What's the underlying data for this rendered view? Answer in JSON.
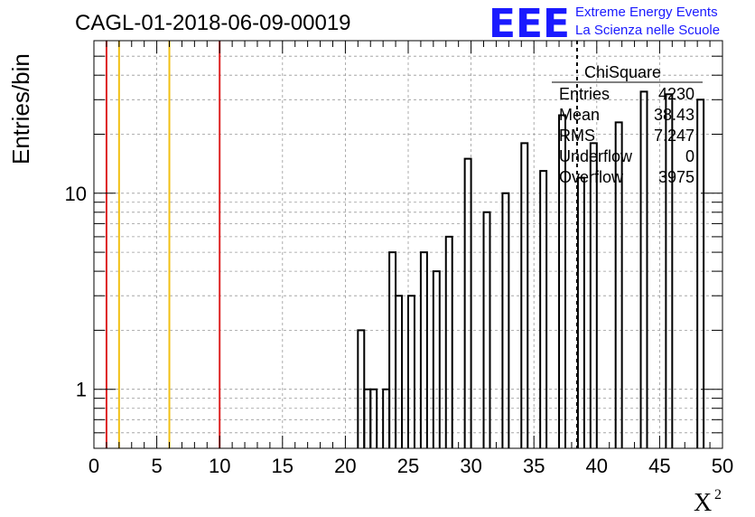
{
  "header": {
    "logo_text": "EEE",
    "org_line1": "Extreme Energy Events",
    "org_line2": "La Scienza nelle Scuole",
    "brand_color": "#1a1aff"
  },
  "stats_box": {
    "title": "ChiSquare",
    "rows": [
      {
        "label": "Entries",
        "value": "4230"
      },
      {
        "label": "Mean",
        "value": "38.43"
      },
      {
        "label": "RMS",
        "value": "7.247"
      },
      {
        "label": "Underflow",
        "value": "0"
      },
      {
        "label": "Overflow",
        "value": "3975"
      }
    ]
  },
  "chart_data": {
    "type": "bar",
    "title": "CAGL-01-2018-06-09-00019",
    "xlabel": "X",
    "xlabel_superscript": "2",
    "ylabel": "Entries/bin",
    "xlim": [
      0,
      50
    ],
    "ylim": [
      0.5,
      60
    ],
    "yscale": "log",
    "grid": true,
    "x_ticks": [
      "0",
      "5",
      "10",
      "15",
      "20",
      "25",
      "30",
      "35",
      "40",
      "45",
      "50"
    ],
    "y_ticks": [
      "1",
      "10"
    ],
    "histogram": {
      "bin_width": 0.5,
      "bins": [
        {
          "x": 21.0,
          "count": 2
        },
        {
          "x": 21.5,
          "count": 1
        },
        {
          "x": 22.0,
          "count": 1
        },
        {
          "x": 23.0,
          "count": 1
        },
        {
          "x": 23.5,
          "count": 5
        },
        {
          "x": 24.0,
          "count": 3
        },
        {
          "x": 25.0,
          "count": 3
        },
        {
          "x": 26.0,
          "count": 5
        },
        {
          "x": 27.0,
          "count": 4
        },
        {
          "x": 28.0,
          "count": 6
        },
        {
          "x": 29.5,
          "count": 15
        },
        {
          "x": 31.0,
          "count": 8
        },
        {
          "x": 32.5,
          "count": 10
        },
        {
          "x": 34.0,
          "count": 18
        },
        {
          "x": 35.5,
          "count": 13
        },
        {
          "x": 37.0,
          "count": 25
        },
        {
          "x": 38.5,
          "count": 12
        },
        {
          "x": 39.5,
          "count": 18
        },
        {
          "x": 41.5,
          "count": 23
        },
        {
          "x": 43.5,
          "count": 33
        },
        {
          "x": 45.5,
          "count": 32
        },
        {
          "x": 48.0,
          "count": 30
        }
      ]
    },
    "vertical_lines": [
      {
        "x": 1,
        "color": "#dd2222"
      },
      {
        "x": 2,
        "color": "#f2c014"
      },
      {
        "x": 6,
        "color": "#f2c014"
      },
      {
        "x": 10,
        "color": "#dd2222"
      }
    ],
    "mean_marker": {
      "x": 38.43,
      "style": "dashed",
      "color": "#000000"
    }
  }
}
